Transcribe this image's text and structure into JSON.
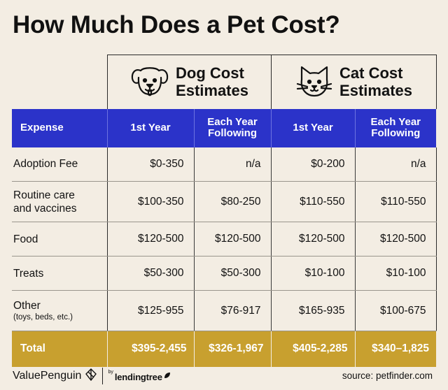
{
  "title": "How Much Does a Pet Cost?",
  "groups": {
    "dog": {
      "title_line1": "Dog Cost",
      "title_line2": "Estimates",
      "icon": "dog-face-icon"
    },
    "cat": {
      "title_line1": "Cat Cost",
      "title_line2": "Estimates",
      "icon": "cat-face-icon"
    }
  },
  "headers": {
    "expense": "Expense",
    "dog_first": "1st Year",
    "dog_each_line1": "Each Year",
    "dog_each_line2": "Following",
    "cat_first": "1st Year",
    "cat_each_line1": "Each Year",
    "cat_each_line2": "Following"
  },
  "rows": [
    {
      "label": "Adoption Fee",
      "sub": "",
      "values": [
        "$0-350",
        "n/a",
        "$0-200",
        "n/a"
      ]
    },
    {
      "label_line1": "Routine care",
      "label_line2": "and vaccines",
      "values": [
        "$100-350",
        "$80-250",
        "$110-550",
        "$110-550"
      ]
    },
    {
      "label": "Food",
      "sub": "",
      "values": [
        "$120-500",
        "$120-500",
        "$120-500",
        "$120-500"
      ]
    },
    {
      "label": "Treats",
      "sub": "",
      "values": [
        "$50-300",
        "$50-300",
        "$10-100",
        "$10-100"
      ]
    },
    {
      "label": "Other",
      "sub": "(toys, beds, etc.)",
      "values": [
        "$125-955",
        "$76-917",
        "$165-935",
        "$100-675"
      ]
    }
  ],
  "total": {
    "label": "Total",
    "values": [
      "$395-2,455",
      "$326-1,967",
      "$405-2,285",
      "$340–1,825"
    ]
  },
  "footer": {
    "brand": "ValuePenguin",
    "by": "by",
    "partner": "lendingtree",
    "source": "source: petfinder.com"
  },
  "colors": {
    "header_blue": "#2b33c9",
    "total_gold": "#c8a02f",
    "background": "#f3ede3"
  }
}
